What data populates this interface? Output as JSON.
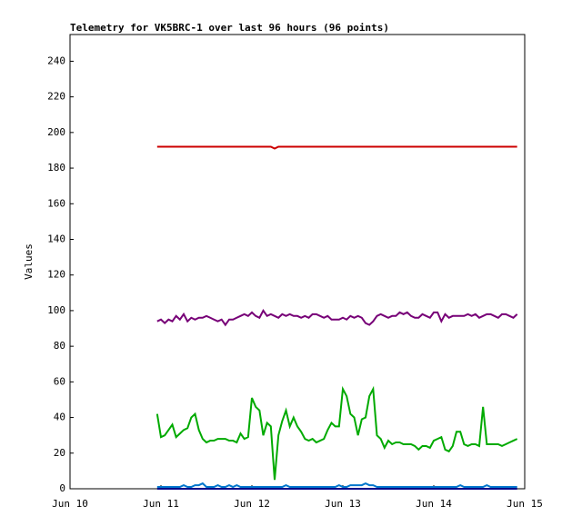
{
  "chart_data": {
    "type": "line",
    "title": "Telemetry for VK5BRC-1 over last 96 hours (96 points)",
    "y_label": "Values",
    "xlim": [
      0,
      120
    ],
    "xticks": [
      {
        "value": 0,
        "label": "Jun 10"
      },
      {
        "value": 24,
        "label": "Jun 11"
      },
      {
        "value": 48,
        "label": "Jun 12"
      },
      {
        "value": 72,
        "label": "Jun 13"
      },
      {
        "value": 96,
        "label": "Jun 14"
      },
      {
        "value": 120,
        "label": "Jun 15"
      }
    ],
    "ylim": [
      0,
      255
    ],
    "yticks": [
      0,
      20,
      40,
      60,
      80,
      100,
      120,
      140,
      160,
      180,
      200,
      220,
      240
    ],
    "grid": false,
    "x": [
      23,
      24,
      25,
      26,
      27,
      28,
      29,
      30,
      31,
      32,
      33,
      34,
      35,
      36,
      37,
      38,
      39,
      40,
      41,
      42,
      43,
      44,
      45,
      46,
      47,
      48,
      49,
      50,
      51,
      52,
      53,
      54,
      55,
      56,
      57,
      58,
      59,
      60,
      61,
      62,
      63,
      64,
      65,
      66,
      67,
      68,
      69,
      70,
      71,
      72,
      73,
      74,
      75,
      76,
      77,
      78,
      79,
      80,
      81,
      82,
      83,
      84,
      85,
      86,
      87,
      88,
      89,
      90,
      91,
      92,
      93,
      94,
      95,
      96,
      97,
      98,
      99,
      100,
      101,
      102,
      103,
      104,
      105,
      106,
      107,
      108,
      109,
      110,
      111,
      112,
      113,
      114,
      115,
      116,
      117,
      118
    ],
    "series": [
      {
        "color": "#cc0000",
        "values": [
          192,
          192,
          192,
          192,
          192,
          192,
          192,
          192,
          192,
          192,
          192,
          192,
          192,
          192,
          192,
          192,
          192,
          192,
          192,
          192,
          192,
          192,
          192,
          192,
          192,
          192,
          192,
          192,
          192,
          192,
          192,
          191,
          192,
          192,
          192,
          192,
          192,
          192,
          192,
          192,
          192,
          192,
          192,
          192,
          192,
          192,
          192,
          192,
          192,
          192,
          192,
          192,
          192,
          192,
          192,
          192,
          192,
          192,
          192,
          192,
          192,
          192,
          192,
          192,
          192,
          192,
          192,
          192,
          192,
          192,
          192,
          192,
          192,
          192,
          192,
          192,
          192,
          192,
          192,
          192,
          192,
          192,
          192,
          192,
          192,
          192,
          192,
          192,
          192,
          192,
          192,
          192,
          192,
          192,
          192,
          192
        ]
      },
      {
        "color": "#770077",
        "values": [
          94,
          95,
          93,
          95,
          94,
          97,
          95,
          98,
          94,
          96,
          95,
          96,
          96,
          97,
          96,
          95,
          94,
          95,
          92,
          95,
          95,
          96,
          97,
          98,
          97,
          99,
          97,
          96,
          100,
          97,
          98,
          97,
          96,
          98,
          97,
          98,
          97,
          97,
          96,
          97,
          96,
          98,
          98,
          97,
          96,
          97,
          95,
          95,
          95,
          96,
          95,
          97,
          96,
          97,
          96,
          93,
          92,
          94,
          97,
          98,
          97,
          96,
          97,
          97,
          99,
          98,
          99,
          97,
          96,
          96,
          98,
          97,
          96,
          99,
          99,
          94,
          98,
          96,
          97,
          97,
          97,
          97,
          98,
          97,
          98,
          96,
          97,
          98,
          98,
          97,
          96,
          98,
          98,
          97,
          96,
          98
        ]
      },
      {
        "color": "#00aa00",
        "values": [
          42,
          29,
          30,
          33,
          36,
          29,
          31,
          33,
          34,
          40,
          42,
          33,
          28,
          26,
          27,
          27,
          28,
          28,
          28,
          27,
          27,
          26,
          31,
          28,
          29,
          51,
          46,
          44,
          30,
          37,
          35,
          5,
          30,
          38,
          44,
          35,
          40,
          35,
          32,
          28,
          27,
          28,
          26,
          27,
          28,
          33,
          37,
          35,
          35,
          56,
          52,
          42,
          40,
          30,
          39,
          40,
          52,
          56,
          30,
          28,
          23,
          27,
          25,
          26,
          26,
          25,
          25,
          25,
          24,
          22,
          24,
          24,
          23,
          27,
          28,
          29,
          22,
          21,
          24,
          32,
          32,
          25,
          24,
          25,
          25,
          24,
          46,
          25,
          25,
          25,
          25,
          24,
          25,
          26,
          27,
          28
        ]
      },
      {
        "color": "#000088",
        "values": [
          0,
          0,
          0,
          0,
          0,
          0,
          0,
          0,
          0,
          0,
          0,
          0,
          0,
          0,
          0,
          0,
          0,
          0,
          0,
          0,
          0,
          0,
          0,
          0,
          0,
          0,
          0,
          0,
          0,
          0,
          0,
          0,
          0,
          0,
          0,
          0,
          0,
          0,
          0,
          0,
          0,
          0,
          0,
          0,
          0,
          0,
          0,
          0,
          0,
          0,
          0,
          0,
          0,
          0,
          0,
          0,
          0,
          0,
          0,
          0,
          0,
          0,
          0,
          0,
          0,
          0,
          0,
          0,
          0,
          0,
          0,
          0,
          0,
          0,
          0,
          0,
          0,
          0,
          0,
          0,
          0,
          0,
          0,
          0,
          0,
          0,
          0,
          0,
          0,
          0,
          0,
          0,
          0,
          0,
          0,
          0
        ]
      },
      {
        "color": "#0077cc",
        "values": [
          1,
          1,
          1,
          1,
          1,
          1,
          1,
          2,
          1,
          1,
          2,
          2,
          3,
          1,
          1,
          1,
          2,
          1,
          1,
          2,
          1,
          2,
          1,
          1,
          1,
          1,
          1,
          1,
          1,
          1,
          1,
          1,
          1,
          1,
          2,
          1,
          1,
          1,
          1,
          1,
          1,
          1,
          1,
          1,
          1,
          1,
          1,
          1,
          2,
          1,
          1,
          2,
          2,
          2,
          2,
          3,
          2,
          2,
          1,
          1,
          1,
          1,
          1,
          1,
          1,
          1,
          1,
          1,
          1,
          1,
          1,
          1,
          1,
          1,
          1,
          1,
          1,
          1,
          1,
          1,
          2,
          1,
          1,
          1,
          1,
          1,
          1,
          2,
          1,
          1,
          1,
          1,
          1,
          1,
          1,
          1
        ]
      }
    ]
  }
}
